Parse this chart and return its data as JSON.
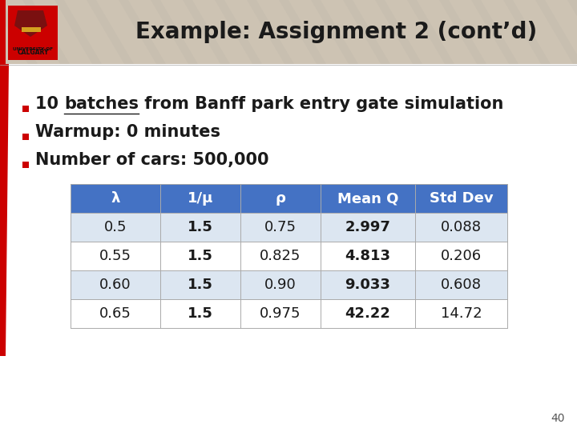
{
  "title": "Example: Assignment 2 (cont’d)",
  "header_bg_color": "#c8bfb0",
  "header_text_color": "#1a1a1a",
  "slide_bg_color": "#ffffff",
  "red_accent": "#cc0000",
  "bullet_color": "#cc0000",
  "bullet_points": [
    {
      "text_normal": "10 ",
      "text_underline": "batches",
      "text_rest": " from Banff park entry gate simulation"
    },
    {
      "text_normal": "Warmup: 0 minutes",
      "text_underline": "",
      "text_rest": ""
    },
    {
      "text_normal": "Number of cars: 500,000",
      "text_underline": "",
      "text_rest": ""
    }
  ],
  "table_header_bg": "#4472c4",
  "table_header_text": "#ffffff",
  "table_row_even_bg": "#dce6f1",
  "table_row_odd_bg": "#ffffff",
  "table_headers": [
    "λ",
    "1/μ",
    "ρ",
    "Mean Q",
    "Std Dev"
  ],
  "table_data": [
    [
      "0.5",
      "1.5",
      "0.75",
      "2.997",
      "0.088"
    ],
    [
      "0.55",
      "1.5",
      "0.825",
      "4.813",
      "0.206"
    ],
    [
      "0.60",
      "1.5",
      "0.90",
      "9.033",
      "0.608"
    ],
    [
      "0.65",
      "1.5",
      "0.975",
      "42.22",
      "14.72"
    ]
  ],
  "col_bold": [
    false,
    true,
    false,
    true,
    false
  ],
  "page_number": "40",
  "font_size_title": 20,
  "font_size_bullet": 15,
  "font_size_table": 13
}
